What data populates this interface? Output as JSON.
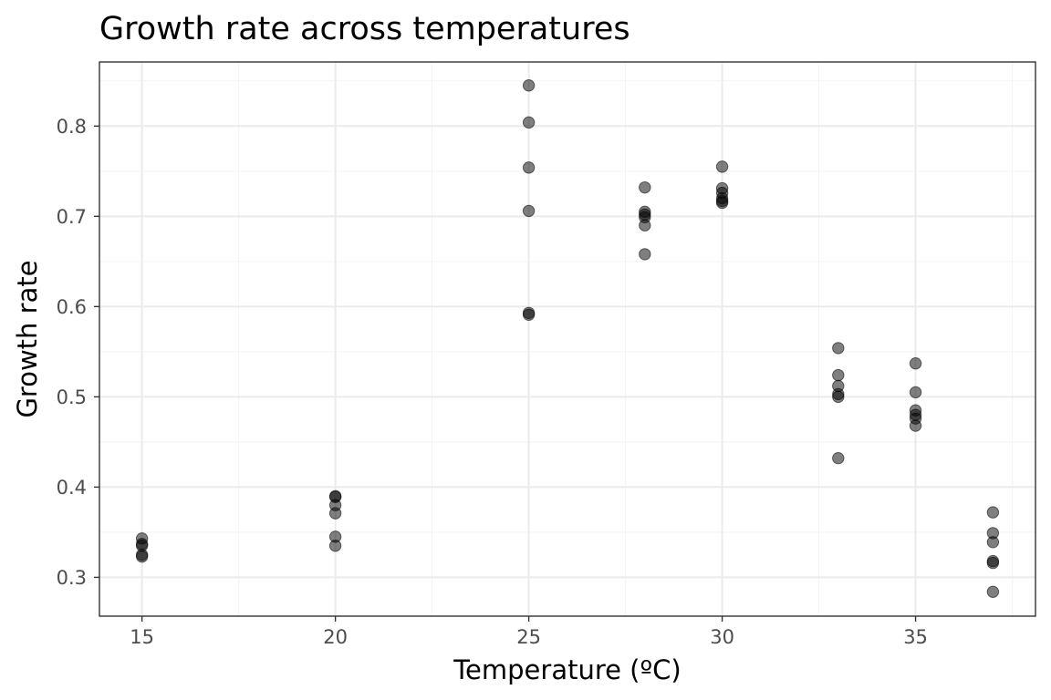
{
  "chart_data": {
    "type": "scatter",
    "title": "Growth rate across temperatures",
    "xlabel": "Temperature (ºC)",
    "ylabel": "Growth rate",
    "xlim": [
      13.9,
      38.1
    ],
    "ylim": [
      0.257,
      0.871
    ],
    "x_ticks": [
      15,
      20,
      25,
      30,
      35
    ],
    "x_tick_labels": [
      "15",
      "20",
      "25",
      "30",
      "35"
    ],
    "y_ticks": [
      0.3,
      0.4,
      0.5,
      0.6,
      0.7,
      0.8
    ],
    "y_tick_labels": [
      "0.3",
      "0.4",
      "0.5",
      "0.6",
      "0.7",
      "0.8"
    ],
    "grid": true,
    "legend": "none",
    "colors": {
      "point": "#000000",
      "grid": "#ebebeb",
      "border": "#333333"
    },
    "points": [
      {
        "x": 15,
        "y": 0.343
      },
      {
        "x": 15,
        "y": 0.337
      },
      {
        "x": 15,
        "y": 0.335
      },
      {
        "x": 15,
        "y": 0.325
      },
      {
        "x": 15,
        "y": 0.323
      },
      {
        "x": 20,
        "y": 0.39
      },
      {
        "x": 20,
        "y": 0.389
      },
      {
        "x": 20,
        "y": 0.38
      },
      {
        "x": 20,
        "y": 0.371
      },
      {
        "x": 20,
        "y": 0.345
      },
      {
        "x": 20,
        "y": 0.335
      },
      {
        "x": 25,
        "y": 0.845
      },
      {
        "x": 25,
        "y": 0.804
      },
      {
        "x": 25,
        "y": 0.754
      },
      {
        "x": 25,
        "y": 0.706
      },
      {
        "x": 25,
        "y": 0.593
      },
      {
        "x": 25,
        "y": 0.591
      },
      {
        "x": 28,
        "y": 0.732
      },
      {
        "x": 28,
        "y": 0.705
      },
      {
        "x": 28,
        "y": 0.702
      },
      {
        "x": 28,
        "y": 0.699
      },
      {
        "x": 28,
        "y": 0.69
      },
      {
        "x": 28,
        "y": 0.658
      },
      {
        "x": 30,
        "y": 0.755
      },
      {
        "x": 30,
        "y": 0.731
      },
      {
        "x": 30,
        "y": 0.726
      },
      {
        "x": 30,
        "y": 0.72
      },
      {
        "x": 30,
        "y": 0.717
      },
      {
        "x": 30,
        "y": 0.715
      },
      {
        "x": 33,
        "y": 0.554
      },
      {
        "x": 33,
        "y": 0.524
      },
      {
        "x": 33,
        "y": 0.512
      },
      {
        "x": 33,
        "y": 0.503
      },
      {
        "x": 33,
        "y": 0.5
      },
      {
        "x": 33,
        "y": 0.432
      },
      {
        "x": 35,
        "y": 0.537
      },
      {
        "x": 35,
        "y": 0.505
      },
      {
        "x": 35,
        "y": 0.485
      },
      {
        "x": 35,
        "y": 0.48
      },
      {
        "x": 35,
        "y": 0.476
      },
      {
        "x": 35,
        "y": 0.468
      },
      {
        "x": 37,
        "y": 0.372
      },
      {
        "x": 37,
        "y": 0.349
      },
      {
        "x": 37,
        "y": 0.339
      },
      {
        "x": 37,
        "y": 0.318
      },
      {
        "x": 37,
        "y": 0.316
      },
      {
        "x": 37,
        "y": 0.284
      }
    ]
  }
}
